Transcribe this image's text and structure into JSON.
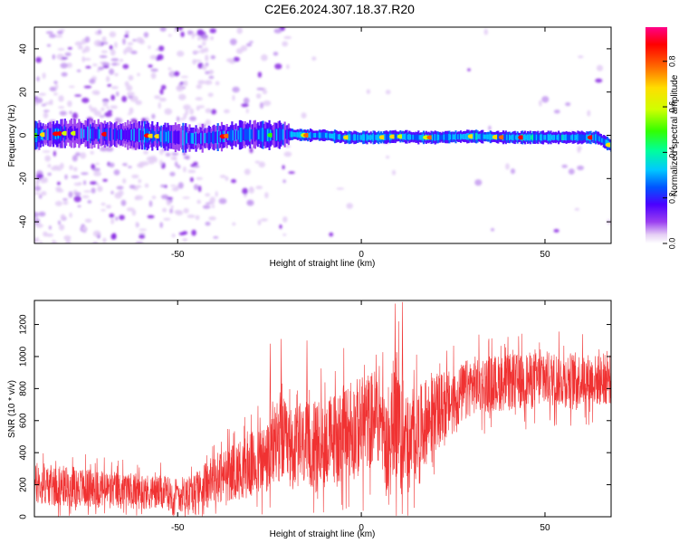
{
  "title": "C2E6.2024.307.18.37.R20",
  "chart_data": [
    {
      "type": "heatmap",
      "xlabel": "Height of straight line (km)",
      "ylabel": "Frequency (Hz)",
      "xlim": [
        -89,
        68
      ],
      "ylim": [
        -50,
        50
      ],
      "xticks": [
        -50,
        0,
        50
      ],
      "xtick_labels": [
        "-50",
        "0",
        "50"
      ],
      "yticks": [
        -40,
        -20,
        0,
        20,
        40
      ],
      "ytick_labels": [
        "-40",
        "-20",
        "0",
        "20",
        "40"
      ],
      "grid": false,
      "colorbar": {
        "label": "Normalized spectral amplitude",
        "range": [
          0,
          0.95
        ],
        "ticks": [
          0,
          0.2,
          0.4,
          0.6,
          0.8
        ],
        "tick_labels": [
          "0.0",
          "0.2",
          "0.4",
          "0.6",
          "0.8"
        ],
        "colormap": [
          "#ffffff",
          "#e6d0f5",
          "#9a3ff0",
          "#4b00ff",
          "#0055ff",
          "#00c8ff",
          "#00ff9a",
          "#33ff00",
          "#d0ff00",
          "#ffdd00",
          "#ff6600",
          "#ff0000",
          "#ff0088"
        ]
      },
      "ridge": {
        "x": [
          -89,
          -80,
          -70,
          -60,
          -50,
          -45,
          -40,
          -35,
          -30,
          -25,
          -20,
          -15,
          -10,
          -5,
          0,
          5,
          10,
          15,
          20,
          30,
          40,
          50,
          60,
          64,
          66,
          68
        ],
        "y": [
          0,
          1,
          0.5,
          0,
          -1,
          -1.5,
          -1,
          0,
          0.5,
          0,
          0.5,
          0,
          0,
          -1,
          -1,
          -1,
          -0.5,
          -1,
          -1,
          -0.5,
          -1,
          -1,
          -1,
          -1,
          -3,
          -5
        ]
      }
    },
    {
      "type": "line",
      "xlabel": "Height of straight line (km)",
      "ylabel": "SNR (10 * v/v)",
      "xlim": [
        -89,
        68
      ],
      "ylim": [
        0,
        1350
      ],
      "xticks": [
        -50,
        0,
        50
      ],
      "xtick_labels": [
        "-50",
        "0",
        "50"
      ],
      "yticks": [
        0,
        200,
        400,
        600,
        800,
        1000,
        1200
      ],
      "ytick_labels": [
        "0",
        "200",
        "400",
        "600",
        "800",
        "1000",
        "1200"
      ],
      "grid": false,
      "series": [
        {
          "color": "#f03232",
          "x": [
            -89,
            -80,
            -70,
            -60,
            -50,
            -45,
            -40,
            -35,
            -30,
            -25,
            -22,
            -20,
            -15,
            -10,
            -5,
            0,
            2,
            5,
            7,
            8,
            9,
            10,
            11,
            12,
            13,
            15,
            20,
            25,
            30,
            40,
            50,
            60,
            65,
            68
          ],
          "y": [
            200,
            190,
            170,
            160,
            140,
            160,
            230,
            280,
            320,
            370,
            520,
            420,
            440,
            460,
            520,
            560,
            600,
            650,
            430,
            450,
            700,
            620,
            400,
            480,
            430,
            520,
            650,
            720,
            820,
            840,
            860,
            860,
            850,
            860
          ],
          "spread": [
            160,
            160,
            150,
            140,
            130,
            150,
            200,
            220,
            260,
            300,
            350,
            320,
            330,
            350,
            380,
            400,
            380,
            380,
            350,
            400,
            500,
            500,
            350,
            420,
            380,
            360,
            300,
            250,
            230,
            220,
            220,
            210,
            200,
            200
          ]
        }
      ]
    }
  ]
}
